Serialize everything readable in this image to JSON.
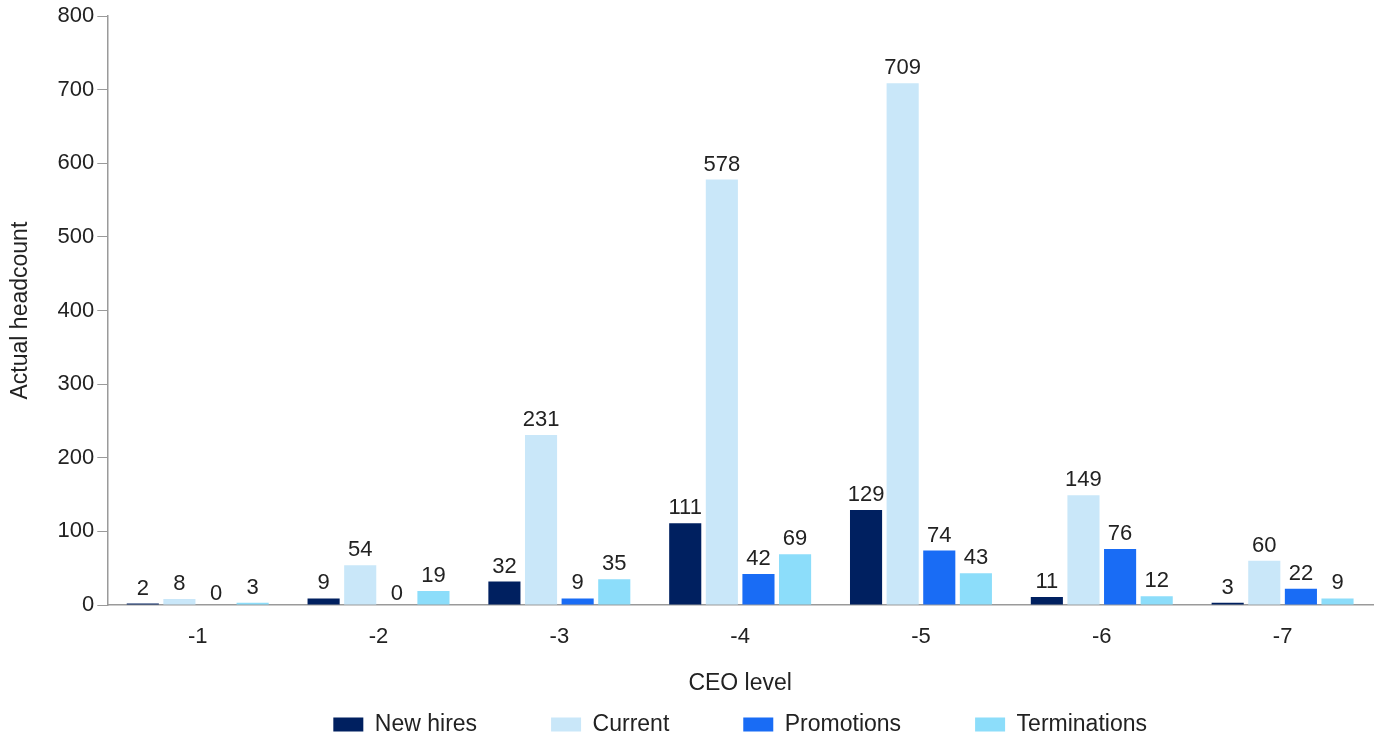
{
  "chart_data": {
    "type": "bar",
    "xlabel": "CEO level",
    "ylabel": "Actual headcount",
    "categories": [
      "-1",
      "-2",
      "-3",
      "-4",
      "-5",
      "-6",
      "-7"
    ],
    "series": [
      {
        "name": "New hires",
        "color": "#002060",
        "values": [
          2,
          9,
          32,
          111,
          129,
          11,
          3
        ]
      },
      {
        "name": "Current",
        "color": "#c9e7f9",
        "values": [
          8,
          54,
          231,
          578,
          709,
          149,
          60
        ]
      },
      {
        "name": "Promotions",
        "color": "#196cf5",
        "values": [
          0,
          0,
          9,
          42,
          74,
          76,
          22
        ]
      },
      {
        "name": "Terminations",
        "color": "#8cddfa",
        "values": [
          3,
          19,
          35,
          69,
          43,
          12,
          9
        ]
      }
    ],
    "ylim": [
      0,
      800
    ],
    "yticks": [
      0,
      100,
      200,
      300,
      400,
      500,
      600,
      700,
      800
    ],
    "grid": false,
    "legend": "bottom",
    "data_labels": true
  }
}
